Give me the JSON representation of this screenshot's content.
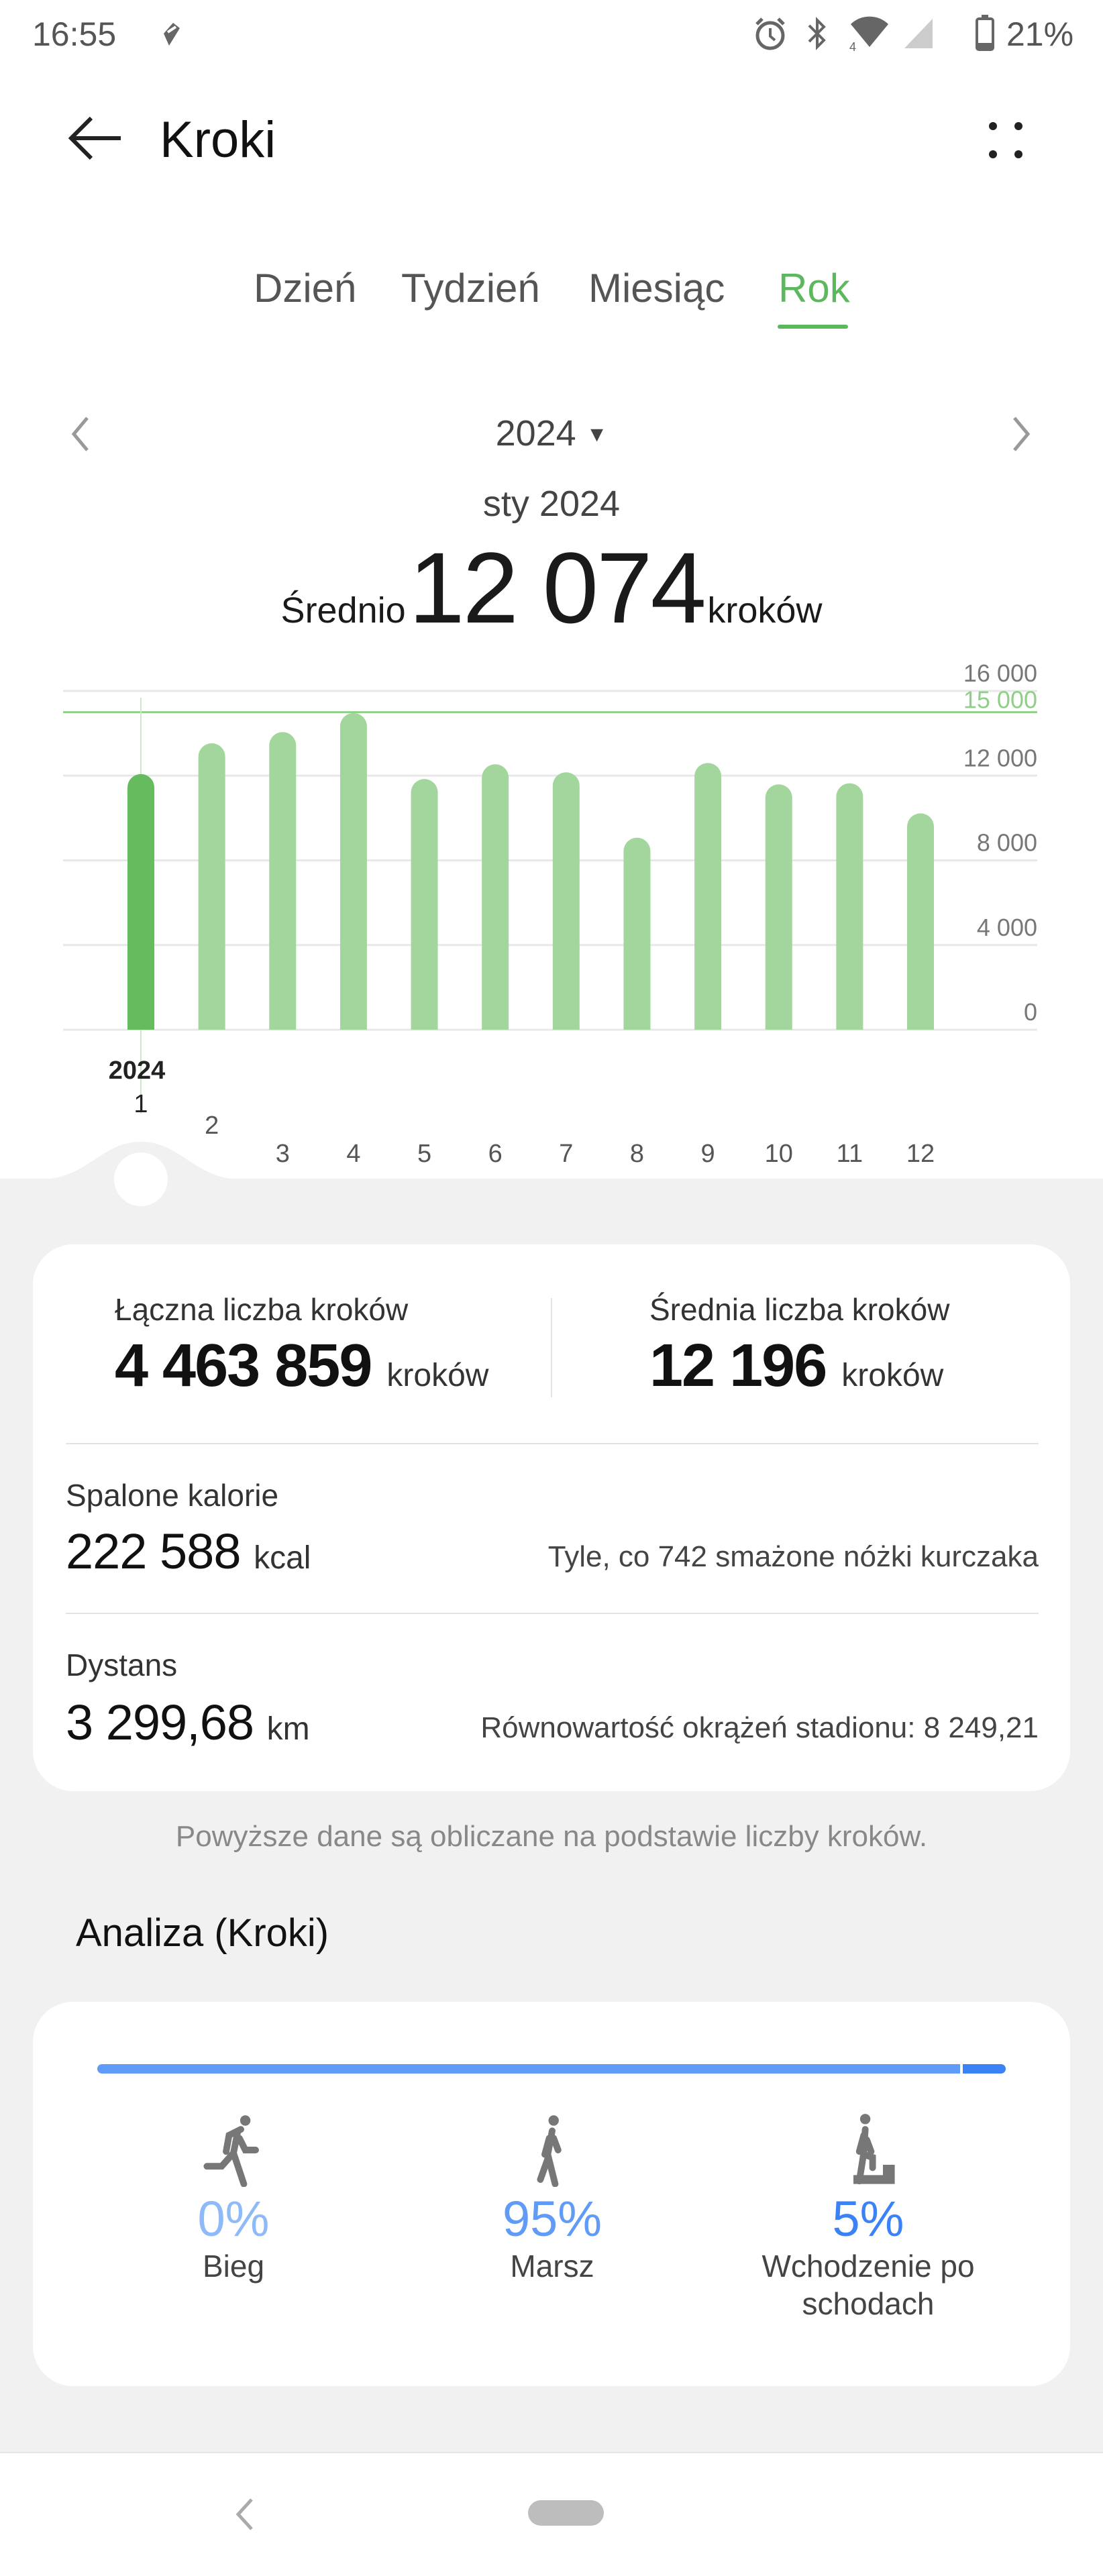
{
  "status_bar": {
    "time": "16:55",
    "battery": "21%",
    "icons": [
      "notification-icon",
      "alarm-icon",
      "bluetooth-icon",
      "wifi-icon",
      "signal-icon",
      "battery-icon"
    ]
  },
  "header": {
    "title": "Kroki",
    "back_icon": "arrow-left-icon",
    "menu_icon": "more-icon"
  },
  "tabs": [
    {
      "label": "Dzień"
    },
    {
      "label": "Tydzień"
    },
    {
      "label": "Miesiąc"
    },
    {
      "label": "Rok",
      "active": true
    }
  ],
  "period": {
    "year": "2024",
    "selected": "sty 2024",
    "avg_prefix": "Średnio",
    "avg_value": "12 074",
    "avg_unit": "kroków"
  },
  "accent": "#5cb85c",
  "chart_data": {
    "type": "bar",
    "categories": [
      "1",
      "2",
      "3",
      "4",
      "5",
      "6",
      "7",
      "8",
      "9",
      "10",
      "11",
      "12"
    ],
    "category_year_label": "2024",
    "values": [
      12074,
      13530,
      14060,
      14960,
      11840,
      12540,
      12160,
      9070,
      12600,
      11590,
      11640,
      10220
    ],
    "selected_index": 0,
    "ylim": [
      0,
      16000
    ],
    "yticks": [
      "0",
      "4 000",
      "8 000",
      "12 000",
      "16 000"
    ],
    "goal_line": {
      "value": 15000,
      "label": "15 000"
    },
    "grid": true,
    "colors": {
      "bar": "#a3d69d",
      "selected": "#66bb5e",
      "goal": "#8fcf88"
    }
  },
  "summary": {
    "total_label": "Łączna liczba kroków",
    "total_value": "4 463 859",
    "total_unit": "kroków",
    "avg_label": "Średnia liczba kroków",
    "avg_value": "12 196",
    "avg_unit": "kroków",
    "calories_label": "Spalone kalorie",
    "calories_value": "222 588",
    "calories_unit": "kcal",
    "calories_note": "Tyle, co 742 smażone nóżki kurczaka",
    "distance_label": "Dystans",
    "distance_value": "3 299,68",
    "distance_unit": "km",
    "distance_note": "Równowartość okrążeń stadionu: 8 249,21"
  },
  "note": "Powyższe dane są obliczane na podstawie liczby kroków.",
  "analysis": {
    "title": "Analiza (Kroki)",
    "items": [
      {
        "label": "Bieg",
        "percent": "0%",
        "value": 0,
        "icon": "running-icon",
        "color": "#8fbaf8"
      },
      {
        "label": "Marsz",
        "percent": "95%",
        "value": 95,
        "icon": "walking-icon",
        "color": "#5f9bf7"
      },
      {
        "label": "Wchodzenie po schodach",
        "percent": "5%",
        "value": 5,
        "icon": "stairs-icon",
        "color": "#3b82f6"
      }
    ]
  }
}
